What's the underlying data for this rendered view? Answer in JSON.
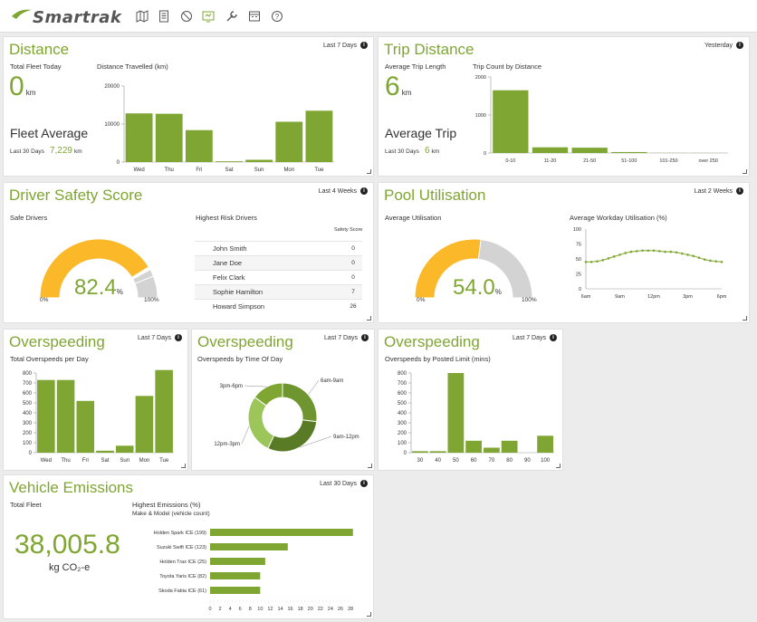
{
  "brand": {
    "name": "Smartrak",
    "accent": "#7fa632",
    "accent_dark": "#5a7b25",
    "warning": "#fbb829",
    "neutral": "#d3d3d3"
  },
  "nav_icons": [
    "map-icon",
    "report-icon",
    "speed-icon",
    "dashboard-icon",
    "tools-icon",
    "calendar-icon",
    "help-icon"
  ],
  "distance": {
    "title": "Distance",
    "period": "Last 7 Days",
    "fleet_today_label": "Total Fleet Today",
    "fleet_today_value": "0",
    "unit": "km",
    "avg_label": "Fleet Average",
    "last30_label": "Last 30 Days",
    "avg_value": "7,229",
    "chart_label": "Distance Travelled (km)"
  },
  "trip": {
    "title": "Trip Distance",
    "period": "Yesterday",
    "avg_length_label": "Average Trip Length",
    "avg_length_value": "6",
    "unit": "km",
    "avg_trip_label": "Average Trip",
    "last30_label": "Last 30 Days",
    "avg_trip_value": "6",
    "chart_label": "Trip Count by Distance"
  },
  "safety": {
    "title": "Driver Safety Score",
    "period": "Last 4 Weeks",
    "safe_label": "Safe Drivers",
    "gauge_value": "82.4",
    "gauge_unit": "%",
    "gauge_min": "0%",
    "gauge_max": "100%",
    "risk_label": "Highest Risk Drivers",
    "score_header": "Safety Score",
    "drivers": [
      {
        "name": "John Smith",
        "score": "0"
      },
      {
        "name": "Jane Doe",
        "score": "0"
      },
      {
        "name": "Felix Clark",
        "score": "0"
      },
      {
        "name": "Sophie Hamilton",
        "score": "7"
      },
      {
        "name": "Howard Simpson",
        "score": "26"
      }
    ]
  },
  "pool": {
    "title": "Pool Utilisation",
    "period": "Last 2 Weeks",
    "avg_label": "Average Utilisation",
    "gauge_value": "54.0",
    "gauge_unit": "%",
    "gauge_min": "0%",
    "gauge_max": "100%",
    "chart_label": "Average Workday Utilisation (%)"
  },
  "overspeed1": {
    "title": "Overspeeding",
    "period": "Last 7 Days",
    "chart_label": "Total Overspeeds per Day"
  },
  "overspeed2": {
    "title": "Overspeeding",
    "period": "Last 7 Days",
    "chart_label": "Overspeeds by Time Of Day"
  },
  "overspeed3": {
    "title": "Overspeeding",
    "period": "Last 7 Days",
    "chart_label": "Overspeeds by Posted Limit (mins)"
  },
  "emissions": {
    "title": "Vehicle Emissions",
    "period": "Last 30 Days",
    "total_label": "Total Fleet",
    "total_value": "38,005.8",
    "total_unit": "kg CO₂-e",
    "chart_label": "Highest Emissions (%)",
    "chart_sublabel": "Make & Model (vehicle count)"
  },
  "chart_data": [
    {
      "id": "distance",
      "type": "bar",
      "categories": [
        "Wed",
        "Thu",
        "Fri",
        "Sat",
        "Sun",
        "Mon",
        "Tue"
      ],
      "values": [
        12800,
        12700,
        8400,
        200,
        600,
        10600,
        13500
      ],
      "ylim": [
        0,
        20000
      ],
      "yticks": [
        0,
        10000,
        20000
      ]
    },
    {
      "id": "trip",
      "type": "bar",
      "categories": [
        "0-10",
        "11-20",
        "21-50",
        "51-100",
        "101-250",
        "over 250"
      ],
      "values": [
        1650,
        150,
        140,
        25,
        3,
        2
      ],
      "ylim": [
        0,
        2000
      ],
      "yticks": [
        0,
        1000,
        2000
      ]
    },
    {
      "id": "safety_gauge",
      "type": "gauge",
      "value": 82.4,
      "segments": [
        [
          0,
          82.4,
          "#fbb829"
        ],
        [
          82.4,
          84,
          "#fff"
        ],
        [
          84,
          88,
          "#d3d3d3"
        ],
        [
          88,
          100,
          "#d3d3d3"
        ]
      ]
    },
    {
      "id": "pool_gauge",
      "type": "gauge",
      "value": 54.0,
      "segments": [
        [
          0,
          54,
          "#fbb829"
        ],
        [
          54,
          100,
          "#d3d3d3"
        ]
      ]
    },
    {
      "id": "pool_line",
      "type": "line",
      "categories": [
        "6am",
        "9am",
        "12pm",
        "3pm",
        "6pm"
      ],
      "x": [
        6,
        6.5,
        7,
        7.5,
        8,
        8.5,
        9,
        9.5,
        10,
        10.5,
        11,
        11.5,
        12,
        12.5,
        13,
        13.5,
        14,
        14.5,
        15,
        15.5,
        16,
        16.5,
        17,
        17.5,
        18
      ],
      "values": [
        45,
        45,
        46,
        48,
        51,
        54,
        57,
        60,
        62,
        63,
        64,
        64,
        64,
        63,
        62,
        62,
        61,
        59,
        57,
        55,
        52,
        49,
        47,
        46,
        45
      ],
      "ylim": [
        0,
        100
      ],
      "yticks": [
        0,
        25,
        50,
        75,
        100
      ]
    },
    {
      "id": "overspeed_day",
      "type": "bar",
      "categories": [
        "Wed",
        "Thu",
        "Fri",
        "Sat",
        "Sun",
        "Mon",
        "Tue"
      ],
      "values": [
        730,
        730,
        520,
        20,
        70,
        570,
        830
      ],
      "ylim": [
        0,
        800
      ],
      "yticks": [
        0,
        100,
        200,
        300,
        400,
        500,
        600,
        700,
        800
      ]
    },
    {
      "id": "overspeed_time",
      "type": "pie",
      "labels": [
        "6am-9am",
        "9am-12pm",
        "12pm-3pm",
        "3pm-6pm"
      ],
      "values": [
        27,
        30,
        28,
        15
      ]
    },
    {
      "id": "overspeed_limit",
      "type": "bar",
      "categories": [
        "30",
        "40",
        "50",
        "60",
        "70",
        "80",
        "90",
        "100"
      ],
      "values": [
        15,
        15,
        800,
        120,
        50,
        120,
        0,
        170
      ],
      "ylim": [
        0,
        800
      ],
      "yticks": [
        0,
        100,
        200,
        300,
        400,
        500,
        600,
        700,
        800
      ]
    },
    {
      "id": "emissions",
      "type": "bar",
      "orientation": "horizontal",
      "categories": [
        "Holden Spark ICE (199)",
        "Suzuki Swift ICE (123)",
        "Holden Trax ICE (25)",
        "Toyota Yaris ICE (82)",
        "Skoda Fabia ICE (61)"
      ],
      "values": [
        28.5,
        15.5,
        11,
        10,
        10
      ],
      "xlim": [
        0,
        28
      ],
      "xticks": [
        0,
        2,
        4,
        6,
        8,
        10,
        12,
        14,
        16,
        18,
        20,
        22,
        24,
        26,
        28
      ]
    }
  ]
}
